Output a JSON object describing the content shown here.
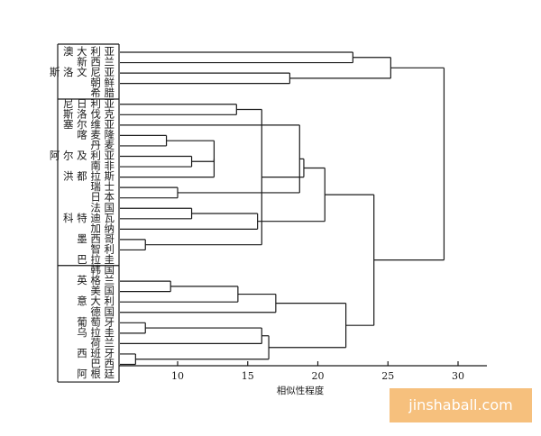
{
  "axis_label": "相似性程度",
  "axis_ticks": [
    {
      "value": 10,
      "label": "10"
    },
    {
      "value": 15,
      "label": "15"
    },
    {
      "value": 20,
      "label": "20"
    },
    {
      "value": 25,
      "label": "25"
    },
    {
      "value": 30,
      "label": "30"
    }
  ],
  "groups": [
    {
      "name": "group-1",
      "rows": [
        "澳 大 利 亚",
        "新 西 兰",
        "斯 洛 文 尼 亚",
        "朝 鲜",
        "希 腊"
      ]
    },
    {
      "name": "group-2",
      "rows": [
        "尼 日 利 亚",
        "斯 洛 伐 克",
        "塞 尔 维 亚",
        "喀 麦 隆",
        "丹 麦",
        "阿 尔 及 利 亚",
        "南 非",
        "洪 都 拉 斯",
        "瑞 士",
        "日 本",
        "法 国",
        "科 特 迪 瓦",
        "加 纳",
        "墨 西 哥",
        "智 利",
        "巴 拉 圭"
      ]
    },
    {
      "name": "group-3",
      "rows": [
        "韩 国",
        "英 格 兰",
        "美 国",
        "意 大 利",
        "德 国",
        "葡 萄 牙",
        "乌 拉 圭",
        "荷 兰",
        "西 班 牙",
        "巴 西",
        "阿 根 廷"
      ]
    }
  ],
  "merges": [
    {
      "a": 0,
      "b": 1,
      "h": 22.5
    },
    {
      "a": 2,
      "b": 3,
      "h": 18.0
    },
    {
      "a": 5,
      "b": 6,
      "h": 14.2
    },
    {
      "a": 8,
      "b": 9,
      "h": 9.2
    },
    {
      "a": 10,
      "b": 11,
      "h": 11.0
    },
    {
      "a": 13,
      "b": 14,
      "h": 10.0
    },
    {
      "a": 15,
      "b": 16,
      "h": 11.0
    },
    {
      "a": 18,
      "b": 19,
      "h": 7.7
    },
    {
      "a": 22,
      "b": 23,
      "h": 9.5
    },
    {
      "a": 26,
      "b": 27,
      "h": 7.7
    },
    {
      "a": 29,
      "b": 30,
      "h": 7.0
    }
  ],
  "watermark": "jinshaball.com"
}
